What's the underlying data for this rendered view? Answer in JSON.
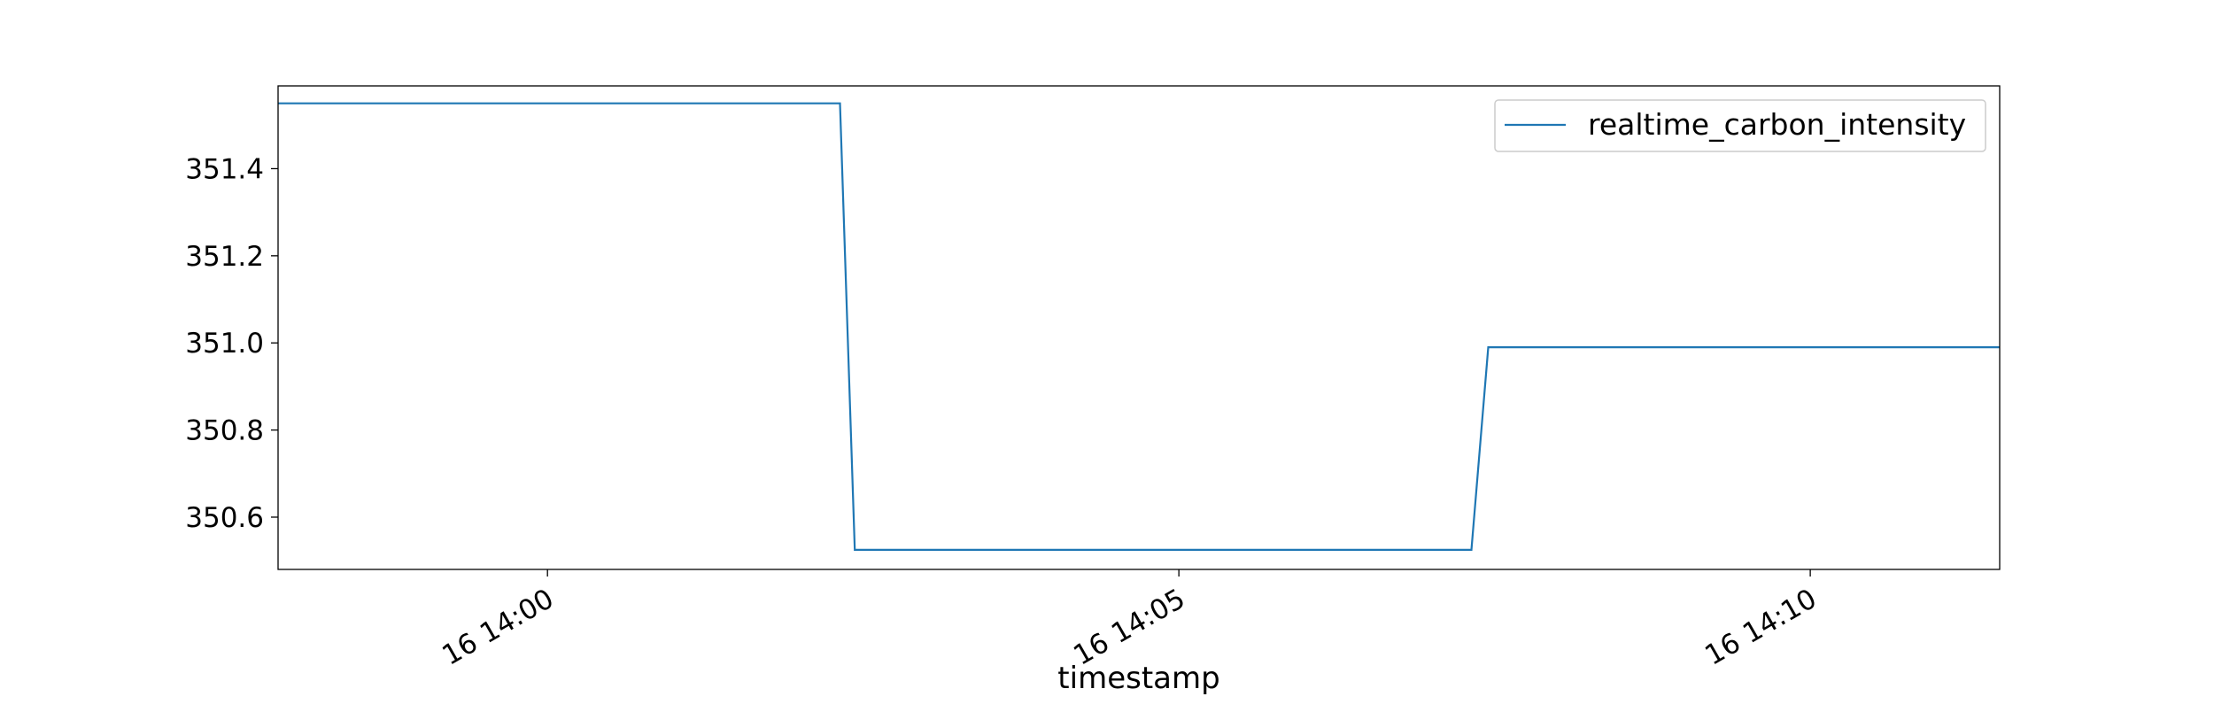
{
  "chart_data": {
    "type": "line",
    "title": "",
    "xlabel": "timestamp",
    "ylabel": "",
    "x_tick_labels": [
      "16 14:00",
      "16 14:05",
      "16 14:10"
    ],
    "y_tick_labels": [
      "350.6",
      "350.8",
      "351.0",
      "351.2",
      "351.4"
    ],
    "xlim": [
      "13:57:52",
      "14:11:30"
    ],
    "ylim": [
      350.48,
      351.59
    ],
    "grid": false,
    "legend_position": "top-right",
    "series": [
      {
        "name": "realtime_carbon_intensity",
        "color": "#1f77b4",
        "x": [
          "13:57:52",
          "14:02:19",
          "14:02:26",
          "14:07:19",
          "14:07:27",
          "14:11:30"
        ],
        "y": [
          351.55,
          351.55,
          350.525,
          350.525,
          350.99,
          350.99
        ]
      }
    ]
  }
}
